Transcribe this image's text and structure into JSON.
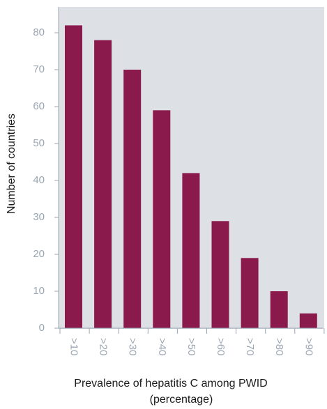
{
  "chart_data": {
    "type": "bar",
    "categories": [
      ">10",
      ">20",
      ">30",
      ">40",
      ">50",
      ">60",
      ">70",
      ">80",
      ">90"
    ],
    "values": [
      82,
      78,
      70,
      59,
      42,
      29,
      19,
      10,
      4
    ],
    "title": "",
    "xlabel_line1": "Prevalence of hepatitis C among PWID",
    "xlabel_line2": "(percentage)",
    "ylabel": "Number of countries",
    "ylim": [
      0,
      85
    ],
    "yticks": [
      0,
      10,
      20,
      30,
      40,
      50,
      60,
      70,
      80
    ],
    "grid": false,
    "colors": {
      "bar": "#8b1a4c",
      "plot_background": "#dde0e5",
      "axis": "#9aa6b2",
      "tick_text": "#9aa6b2",
      "title_text": "#1a1a1a"
    }
  }
}
